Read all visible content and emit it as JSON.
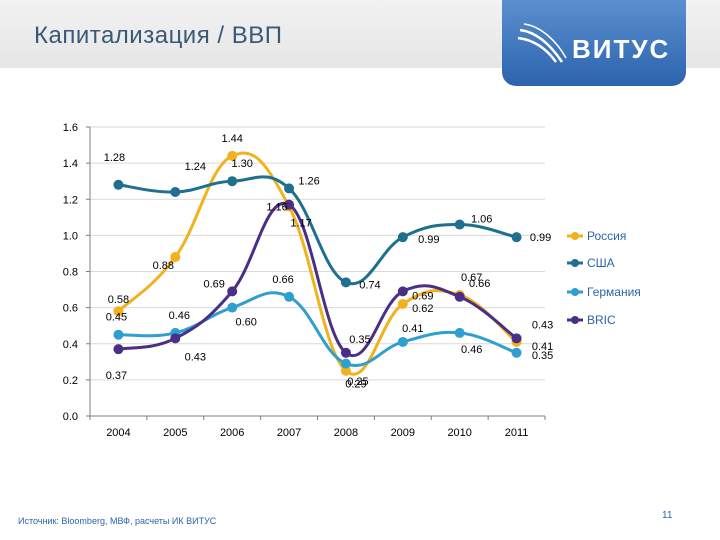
{
  "header": {
    "title": "Капитализация / ВВП"
  },
  "logo": {
    "text": "ВИТУС"
  },
  "footer": {
    "source": "Источник: Bloomberg, МВФ, расчеты ИК ВИТУС",
    "page": "11"
  },
  "chart_data": {
    "type": "line",
    "title": "",
    "xlabel": "",
    "ylabel": "",
    "ylim": [
      0,
      1.6
    ],
    "yticks": [
      "0.0",
      "0.2",
      "0.4",
      "0.6",
      "0.8",
      "1.0",
      "1.2",
      "1.4",
      "1.6"
    ],
    "categories": [
      "2004",
      "2005",
      "2006",
      "2007",
      "2008",
      "2009",
      "2010",
      "2011"
    ],
    "grid": true,
    "legend": "right",
    "series": [
      {
        "name": "Россия",
        "color": "#f2b21e",
        "values": [
          0.58,
          0.88,
          1.44,
          1.16,
          0.25,
          0.62,
          0.67,
          0.41
        ]
      },
      {
        "name": "США",
        "color": "#1f6f8f",
        "values": [
          1.28,
          1.24,
          1.3,
          1.26,
          0.74,
          0.99,
          1.06,
          0.99
        ]
      },
      {
        "name": "Германия",
        "color": "#2f9fd0",
        "values": [
          0.45,
          0.46,
          0.6,
          0.66,
          0.29,
          0.41,
          0.46,
          0.35
        ]
      },
      {
        "name": "BRIC",
        "color": "#4a2f86",
        "values": [
          0.37,
          0.43,
          0.69,
          1.17,
          0.35,
          0.69,
          0.66,
          0.43
        ]
      }
    ]
  }
}
